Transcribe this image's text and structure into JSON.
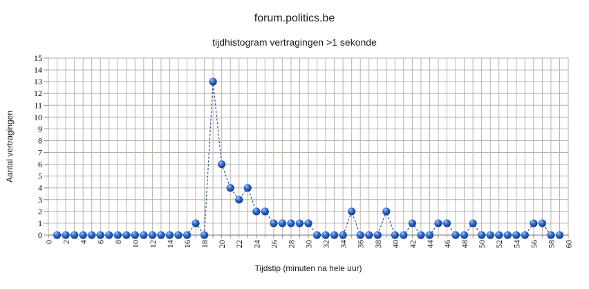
{
  "chart_data": {
    "type": "line",
    "title": "forum.politics.be",
    "subtitle": "tijdhistogram vertragingen >1 sekonde",
    "xlabel": "Tijdstip (minuten na hele uur)",
    "ylabel": "Aantal vertragingen",
    "xlim": [
      0,
      60
    ],
    "ylim": [
      0,
      15
    ],
    "grid": true,
    "legend": "none",
    "line_style": "dashed",
    "marker": "glossy-sphere",
    "x_ticks": [
      0,
      2,
      4,
      6,
      8,
      10,
      12,
      14,
      16,
      18,
      20,
      22,
      24,
      26,
      28,
      30,
      32,
      34,
      36,
      38,
      40,
      42,
      44,
      46,
      48,
      50,
      52,
      54,
      56,
      58,
      60
    ],
    "y_ticks": [
      0,
      1,
      2,
      3,
      4,
      5,
      6,
      7,
      8,
      9,
      10,
      11,
      12,
      13,
      14,
      15
    ],
    "x": [
      1,
      2,
      3,
      4,
      5,
      6,
      7,
      8,
      9,
      10,
      11,
      12,
      13,
      14,
      15,
      16,
      17,
      18,
      19,
      20,
      21,
      22,
      23,
      24,
      25,
      26,
      27,
      28,
      29,
      30,
      31,
      32,
      33,
      34,
      35,
      36,
      37,
      38,
      39,
      40,
      41,
      42,
      43,
      44,
      45,
      46,
      47,
      48,
      49,
      50,
      51,
      52,
      53,
      54,
      55,
      56,
      57,
      58,
      59
    ],
    "y": [
      0,
      0,
      0,
      0,
      0,
      0,
      0,
      0,
      0,
      0,
      0,
      0,
      0,
      0,
      0,
      0,
      1,
      0,
      13,
      6,
      4,
      3,
      4,
      2,
      2,
      1,
      1,
      1,
      1,
      1,
      0,
      0,
      0,
      0,
      2,
      0,
      0,
      0,
      2,
      0,
      0,
      1,
      0,
      0,
      1,
      1,
      0,
      0,
      1,
      0,
      0,
      0,
      0,
      0,
      0,
      1,
      1,
      0,
      0
    ],
    "colors": {
      "line": "#2d4f87",
      "grid": "#b6b2ac",
      "axis": "#8c8c8c",
      "tick_text": "#000000",
      "title_text": "#1a1a1a",
      "marker_highlight": "#b9d1f2",
      "marker_mid": "#4a7fd8",
      "marker_main": "#2257b8",
      "marker_edge": "#133c82"
    }
  }
}
